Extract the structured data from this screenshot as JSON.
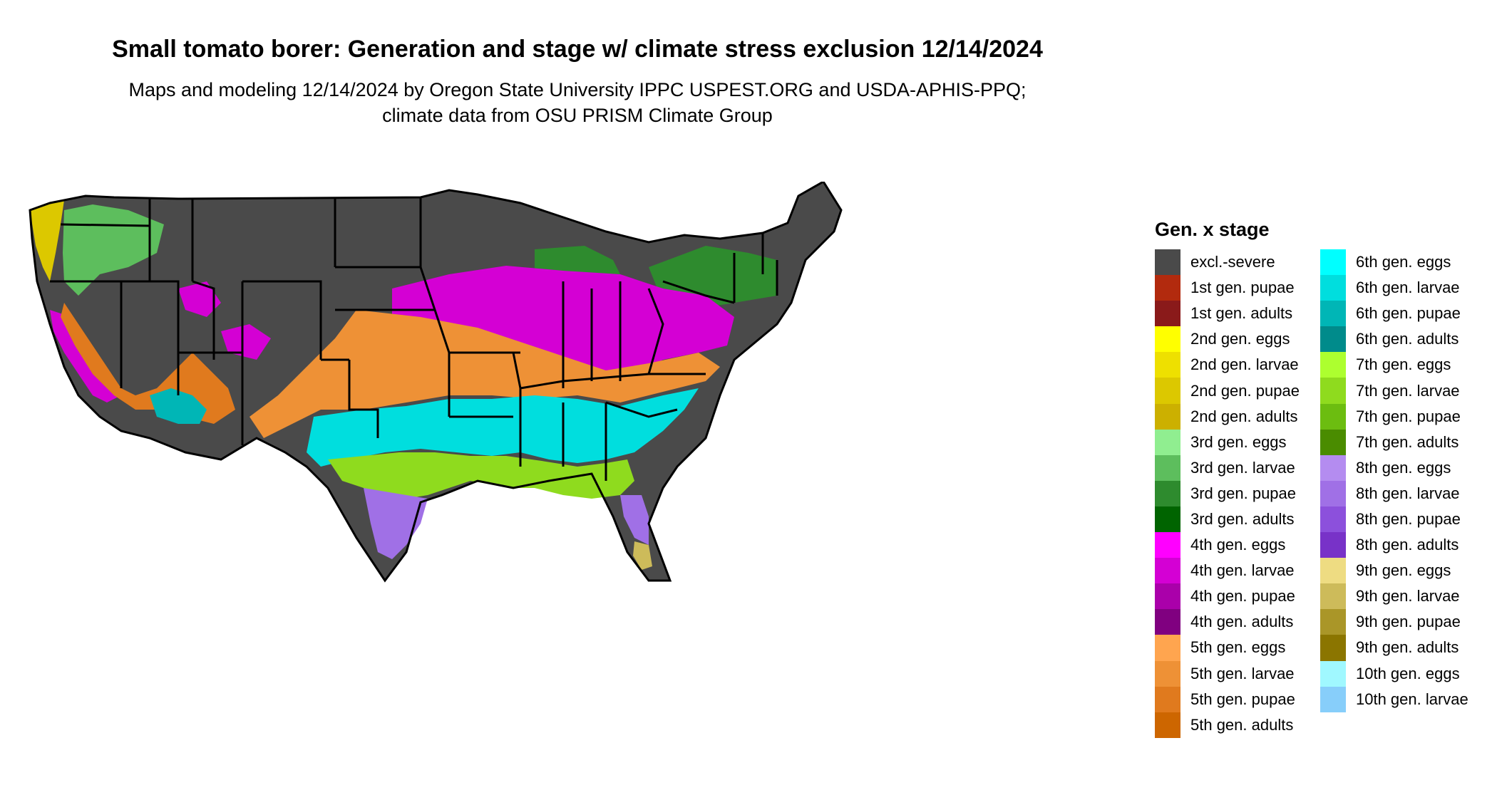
{
  "title": "Small tomato borer: Generation and stage w/ climate stress exclusion 12/14/2024",
  "subtitle": "Maps and modeling 12/14/2024 by Oregon State University IPPC USPEST.ORG and USDA-APHIS-PPQ; climate data from OSU PRISM Climate Group",
  "legend": {
    "title": "Gen. x stage",
    "items": [
      {
        "label": "excl.-severe",
        "color": "#4a4a4a"
      },
      {
        "label": "1st gen. pupae",
        "color": "#b22a0e"
      },
      {
        "label": "1st gen. adults",
        "color": "#8a1a1a"
      },
      {
        "label": "2nd gen. eggs",
        "color": "#ffff00"
      },
      {
        "label": "2nd gen. larvae",
        "color": "#eee000"
      },
      {
        "label": "2nd gen. pupae",
        "color": "#dcc800"
      },
      {
        "label": "2nd gen. adults",
        "color": "#ccb000"
      },
      {
        "label": "3rd gen. eggs",
        "color": "#90ee90"
      },
      {
        "label": "3rd gen. larvae",
        "color": "#5dbe5d"
      },
      {
        "label": "3rd gen. pupae",
        "color": "#2e8b2e"
      },
      {
        "label": "3rd gen. adults",
        "color": "#006400"
      },
      {
        "label": "4th gen. eggs",
        "color": "#ff00ff"
      },
      {
        "label": "4th gen. larvae",
        "color": "#d400d4"
      },
      {
        "label": "4th gen. pupae",
        "color": "#aa00aa"
      },
      {
        "label": "4th gen. adults",
        "color": "#800080"
      },
      {
        "label": "5th gen. eggs",
        "color": "#ffa54f"
      },
      {
        "label": "5th gen. larvae",
        "color": "#ee9136"
      },
      {
        "label": "5th gen. pupae",
        "color": "#e07a1e"
      },
      {
        "label": "5th gen. adults",
        "color": "#cd6600"
      },
      {
        "label": "6th gen. eggs",
        "color": "#00ffff"
      },
      {
        "label": "6th gen. larvae",
        "color": "#00dede"
      },
      {
        "label": "6th gen. pupae",
        "color": "#00b6b6"
      },
      {
        "label": "6th gen. adults",
        "color": "#008b8b"
      },
      {
        "label": "7th gen. eggs",
        "color": "#adff2f"
      },
      {
        "label": "7th gen. larvae",
        "color": "#8fdb1e"
      },
      {
        "label": "7th gen. pupae",
        "color": "#6cbd10"
      },
      {
        "label": "7th gen. adults",
        "color": "#4a8c00"
      },
      {
        "label": "8th gen. eggs",
        "color": "#b48cf0"
      },
      {
        "label": "8th gen. larvae",
        "color": "#a070e6"
      },
      {
        "label": "8th gen. pupae",
        "color": "#8c50dc"
      },
      {
        "label": "8th gen. adults",
        "color": "#7832c8"
      },
      {
        "label": "9th gen. eggs",
        "color": "#eedc82"
      },
      {
        "label": "9th gen. larvae",
        "color": "#cdbb5a"
      },
      {
        "label": "9th gen. pupae",
        "color": "#aa9628"
      },
      {
        "label": "9th gen. adults",
        "color": "#8b7500"
      },
      {
        "label": "10th gen. eggs",
        "color": "#a0f8ff"
      },
      {
        "label": "10th gen. larvae",
        "color": "#87cefa"
      }
    ]
  },
  "map_colors": {
    "excluded": "#4a4a4a",
    "border": "#000000",
    "gen2": "#dcc800",
    "gen3": "#5dbe5d",
    "gen3_dark": "#2e8b2e",
    "gen4": "#d400d4",
    "gen4_eggs": "#ff00ff",
    "gen5": "#ee9136",
    "gen5_dark": "#e07a1e",
    "gen6": "#00dede",
    "gen6_dark": "#00b6b6",
    "gen7": "#8fdb1e",
    "gen7_eggs": "#adff2f",
    "gen8": "#a070e6",
    "gen9": "#cdbb5a",
    "gen10": "#87cefa"
  }
}
